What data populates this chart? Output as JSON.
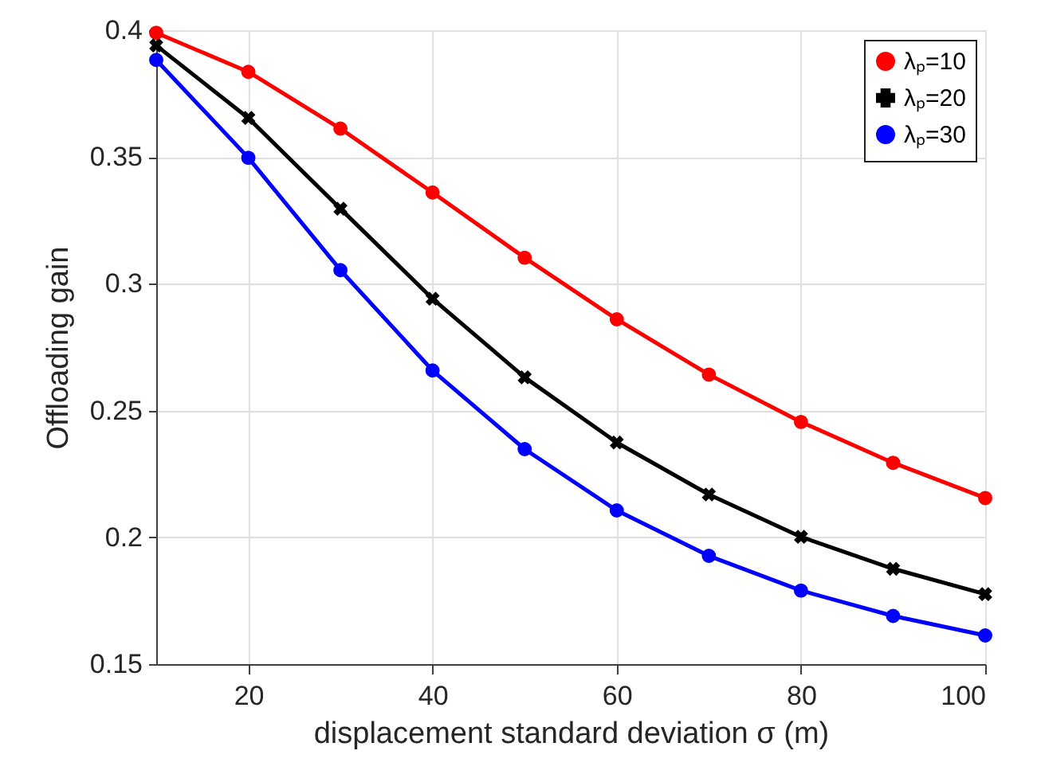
{
  "chart_data": {
    "type": "line",
    "xlabel": "displacement standard deviation  σ (m)",
    "ylabel": "Offloading gain",
    "x": [
      10,
      20,
      30,
      40,
      50,
      60,
      70,
      80,
      90,
      100
    ],
    "series": [
      {
        "name": "λₚ=10",
        "color": "#ff0000",
        "marker": "circle",
        "values": [
          0.399,
          0.3836,
          0.3612,
          0.336,
          0.3103,
          0.286,
          0.2642,
          0.2455,
          0.2294,
          0.2155
        ]
      },
      {
        "name": "λₚ=20",
        "color": "#000000",
        "marker": "cross",
        "values": [
          0.394,
          0.3654,
          0.3296,
          0.2941,
          0.2631,
          0.2374,
          0.2169,
          0.2002,
          0.1876,
          0.1776
        ]
      },
      {
        "name": "λₚ=30",
        "color": "#0000ff",
        "marker": "circle",
        "values": [
          0.3883,
          0.3497,
          0.3054,
          0.2658,
          0.2348,
          0.2106,
          0.1927,
          0.179,
          0.169,
          0.1613
        ]
      }
    ],
    "xlim": [
      10,
      100
    ],
    "ylim": [
      0.15,
      0.4
    ],
    "xticks": [
      20,
      40,
      60,
      80,
      100
    ],
    "yticks": [
      0.15,
      0.2,
      0.25,
      0.3,
      0.35,
      0.4
    ],
    "grid": true,
    "legend": "top right",
    "line_style": "solid"
  }
}
